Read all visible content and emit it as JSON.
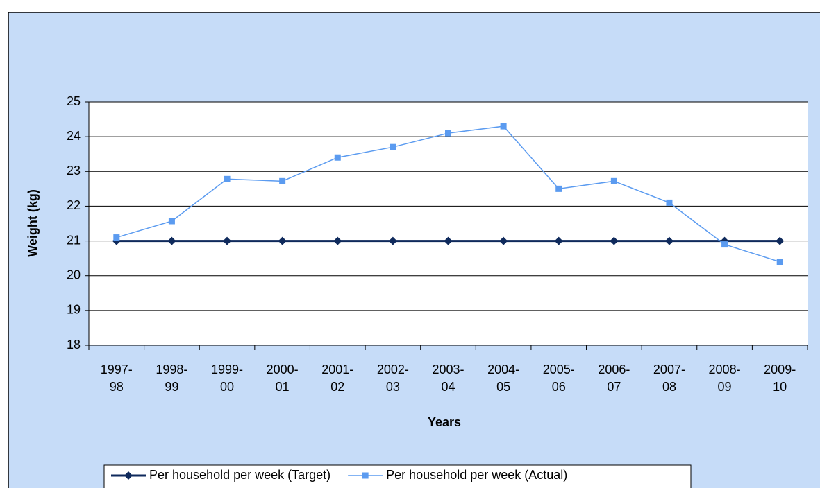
{
  "chart_data": {
    "type": "line",
    "categories": [
      "1997-98",
      "1998-99",
      "1999-00",
      "2000-01",
      "2001-02",
      "2002-03",
      "2003-04",
      "2004-05",
      "2005-06",
      "2006-07",
      "2007-08",
      "2008-09",
      "2009-10"
    ],
    "series": [
      {
        "name": "Per household per week (Target)",
        "color": "#0f2a5c",
        "values": [
          21,
          21,
          21,
          21,
          21,
          21,
          21,
          21,
          21,
          21,
          21,
          21,
          21
        ]
      },
      {
        "name": "Per household per week (Actual)",
        "color": "#5b9bf0",
        "values": [
          21.1,
          21.57,
          22.78,
          22.72,
          23.4,
          23.7,
          24.1,
          24.3,
          22.5,
          22.72,
          22.1,
          20.9,
          20.4
        ]
      }
    ],
    "xlabel": "Years",
    "ylabel": "Weight (kg)",
    "ylim": [
      18,
      25
    ],
    "yticks": [
      18,
      19,
      20,
      21,
      22,
      23,
      24,
      25
    ],
    "grid": true,
    "legend": "bottom"
  }
}
